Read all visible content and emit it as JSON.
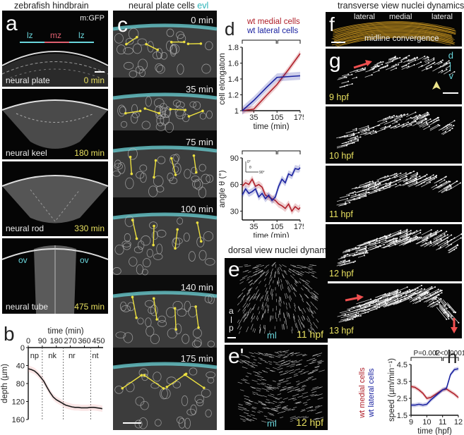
{
  "column_titles": {
    "a": "zebrafish hindbrain",
    "c": "neural plate cells",
    "c_evl": "evl",
    "e": "dorsal view nuclei dynamics",
    "f": "transverse view nuclei dynamics"
  },
  "panel_a": {
    "letter": "a",
    "marker": "m:GFP",
    "zones": [
      "lz",
      "mz",
      "lz"
    ],
    "stages": [
      {
        "name": "neural plate",
        "time": "0 min"
      },
      {
        "name": "neural keel",
        "time": "180 min"
      },
      {
        "name": "neural rod",
        "time": "330 min"
      },
      {
        "name": "neural tube",
        "time": "475 min"
      }
    ],
    "ov_label": "ov",
    "colors": {
      "lz": "#6ad6dc",
      "mz": "#e06070",
      "time": "#e8e060"
    }
  },
  "panel_c": {
    "letter": "c",
    "times": [
      "0 min",
      "35 min",
      "75 min",
      "100 min",
      "140 min",
      "175 min"
    ]
  },
  "panel_e": {
    "letter": "e",
    "letter2": "e'",
    "axis_a": "a",
    "axis_p": "p",
    "ml": "ml",
    "time1": "11 hpf",
    "time2": "12 hpf"
  },
  "panel_f": {
    "letter": "f",
    "labels": [
      "lateral",
      "medial",
      "lateral"
    ],
    "caption": "midline convergence"
  },
  "panel_g": {
    "letter": "g",
    "axis_d": "d",
    "axis_v": "v",
    "times": [
      "9 hpf",
      "10 hpf",
      "11 hpf",
      "12 hpf",
      "13 hpf"
    ]
  },
  "chart_data": [
    {
      "id": "b",
      "letter": "b",
      "type": "line",
      "title": "",
      "xlabel": "time (min)",
      "ylabel": "depth (µm)",
      "xlim": [
        0,
        480
      ],
      "ylim": [
        0,
        160
      ],
      "y_inverted": true,
      "x_axis_position": "top",
      "xticks": [
        0,
        90,
        180,
        270,
        360,
        450
      ],
      "yticks": [
        0,
        40,
        80,
        120,
        160
      ],
      "stage_dividers": [
        90,
        225,
        400
      ],
      "stage_labels": [
        {
          "label": "np",
          "x": 40
        },
        {
          "label": "nk",
          "x": 155
        },
        {
          "label": "nr",
          "x": 280
        },
        {
          "label": "nt",
          "x": 430
        }
      ],
      "series": [
        {
          "name": "depth",
          "color": "#1a1a1a",
          "error_color": "#e88c8c",
          "x": [
            0,
            20,
            40,
            60,
            80,
            100,
            120,
            140,
            160,
            180,
            200,
            220,
            240,
            260,
            280,
            300,
            320,
            340,
            360,
            380,
            400,
            420,
            440,
            460,
            475
          ],
          "y": [
            47,
            49,
            52,
            58,
            66,
            75,
            88,
            100,
            110,
            116,
            120,
            124,
            128,
            130,
            132,
            133,
            133,
            134,
            134,
            134,
            133,
            133,
            134,
            135,
            136
          ],
          "error": 7
        }
      ]
    },
    {
      "id": "d_top",
      "letter": "d",
      "type": "line",
      "xlabel": "time (min)",
      "ylabel": "cell elongation",
      "xlim": [
        0,
        175
      ],
      "ylim": [
        1,
        1.8
      ],
      "xticks": [
        35,
        105,
        175
      ],
      "yticks": [
        1,
        1.2,
        1.4,
        1.6,
        1.8
      ],
      "ytick_labels": [
        "1",
        "1.2",
        "1.4",
        "1.6",
        "1.8"
      ],
      "annotations": [
        "P=0.667",
        "P<0.0001"
      ],
      "legend": {
        "position": "top",
        "entries": [
          "wt medial cells",
          "wt lateral cells"
        ]
      },
      "series": [
        {
          "name": "wt medial cells",
          "color": "#b0202a",
          "x": [
            0,
            35,
            75,
            105,
            140,
            175
          ],
          "y": [
            1.0,
            1.02,
            1.2,
            1.33,
            1.52,
            1.72
          ],
          "error": 0.04
        },
        {
          "name": "wt lateral cells",
          "color": "#1a22a0",
          "x": [
            0,
            35,
            75,
            105,
            140,
            175
          ],
          "y": [
            1.0,
            1.13,
            1.3,
            1.42,
            1.43,
            1.44
          ],
          "error": 0.05
        }
      ]
    },
    {
      "id": "d_bottom",
      "type": "line",
      "xlabel": "time (min)",
      "ylabel": "angle θ (°)",
      "xlim": [
        0,
        175
      ],
      "ylim": [
        20,
        90
      ],
      "xticks": [
        35,
        105,
        175
      ],
      "yticks": [
        30,
        60,
        90
      ],
      "annotations": [
        "P=0.096",
        "P<0.0001"
      ],
      "inset_labels": [
        "0°",
        "θ",
        "90°"
      ],
      "series": [
        {
          "name": "wt medial cells",
          "color": "#b0202a",
          "x": [
            0,
            10,
            20,
            30,
            40,
            50,
            60,
            70,
            80,
            90,
            100,
            110,
            120,
            130,
            140,
            150,
            160,
            170,
            175
          ],
          "y": [
            58,
            62,
            60,
            66,
            58,
            60,
            57,
            48,
            46,
            44,
            42,
            38,
            36,
            33,
            38,
            30,
            35,
            32,
            34
          ]
        },
        {
          "name": "wt lateral cells",
          "color": "#1a22a0",
          "x": [
            0,
            10,
            20,
            30,
            40,
            50,
            60,
            70,
            80,
            90,
            100,
            110,
            120,
            130,
            140,
            150,
            160,
            170,
            175
          ],
          "y": [
            48,
            55,
            50,
            52,
            55,
            46,
            50,
            44,
            48,
            42,
            46,
            58,
            66,
            62,
            72,
            70,
            78,
            77,
            79
          ]
        }
      ]
    },
    {
      "id": "h",
      "letter": "h",
      "type": "line",
      "xlabel": "time (hpf)",
      "ylabel": "speed (µm/min⁻¹)",
      "xlim": [
        9,
        12
      ],
      "ylim": [
        1.5,
        4.5
      ],
      "xticks": [
        9,
        10,
        11,
        12
      ],
      "yticks": [
        1.5,
        2.5,
        3.5,
        4.5
      ],
      "annotations": [
        "P=0.002",
        "P<0.0001"
      ],
      "legend": {
        "position": "left",
        "entries": [
          "wt medial cells",
          "wt lateral cells"
        ]
      },
      "series": [
        {
          "name": "wt medial cells",
          "color": "#b0202a",
          "x": [
            9,
            9.25,
            9.5,
            9.75,
            10,
            10.25,
            10.5,
            10.75,
            11,
            11.25,
            11.5,
            11.75,
            12
          ],
          "y": [
            3.2,
            3.15,
            3.0,
            2.8,
            2.5,
            2.55,
            2.7,
            2.85,
            3.0,
            3.05,
            2.9,
            2.75,
            2.55
          ]
        },
        {
          "name": "wt lateral cells",
          "color": "#1a22a0",
          "x": [
            9,
            9.25,
            9.5,
            9.75,
            10,
            10.25,
            10.5,
            10.75,
            11,
            11.25,
            11.5,
            11.75,
            12
          ],
          "y": [
            2.1,
            2.1,
            2.15,
            2.1,
            2.15,
            2.4,
            2.6,
            2.8,
            3.0,
            3.1,
            3.9,
            4.2,
            4.25
          ]
        }
      ]
    }
  ]
}
